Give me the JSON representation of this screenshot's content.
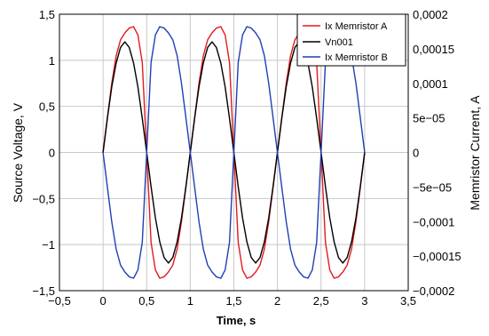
{
  "chart_data": {
    "type": "line",
    "xlabel": "Time, s",
    "ylabel_left": "Source Voltage, V",
    "ylabel_right": "Memristor Current, A",
    "xlim": [
      -0.5,
      3.5
    ],
    "ylim_left": [
      -1.5,
      1.5
    ],
    "ylim_right": [
      -0.0002,
      0.0002
    ],
    "grid": true,
    "legend_position": "top-right",
    "x_ticks": [
      "−0,5",
      "0",
      "0,5",
      "1",
      "1,5",
      "2",
      "2,5",
      "3",
      "3,5"
    ],
    "y_left_ticks": [
      "1,5",
      "1",
      "0,5",
      "0",
      "−0,5",
      "−1",
      "−1,5"
    ],
    "y_right_ticks": [
      "0,0002",
      "0,00015",
      "0,0001",
      "5e−05",
      "0",
      "−5e−05",
      "−0,0001",
      "−0,00015",
      "−0,0002"
    ],
    "series": [
      {
        "name": "Ix Memristor A",
        "color": "#e31a1c",
        "axis": "right",
        "points": [
          [
            0,
            0
          ],
          [
            0.05,
            5e-05
          ],
          [
            0.1,
            0.0001
          ],
          [
            0.15,
            0.00014
          ],
          [
            0.2,
            0.000163
          ],
          [
            0.25,
            0.000173
          ],
          [
            0.3,
            0.00018
          ],
          [
            0.35,
            0.000182
          ],
          [
            0.4,
            0.00017
          ],
          [
            0.45,
            0.00013
          ],
          [
            0.5,
            0
          ],
          [
            0.55,
            -0.00013
          ],
          [
            0.6,
            -0.00017
          ],
          [
            0.65,
            -0.000182
          ],
          [
            0.7,
            -0.00018
          ],
          [
            0.75,
            -0.000173
          ],
          [
            0.8,
            -0.000163
          ],
          [
            0.85,
            -0.00014
          ],
          [
            0.9,
            -0.0001
          ],
          [
            0.95,
            -5e-05
          ],
          [
            1.0,
            0
          ],
          [
            1.05,
            5e-05
          ],
          [
            1.1,
            0.0001
          ],
          [
            1.15,
            0.00014
          ],
          [
            1.2,
            0.000163
          ],
          [
            1.25,
            0.000173
          ],
          [
            1.3,
            0.00018
          ],
          [
            1.35,
            0.000182
          ],
          [
            1.4,
            0.00017
          ],
          [
            1.45,
            0.00013
          ],
          [
            1.5,
            0
          ],
          [
            1.55,
            -0.00013
          ],
          [
            1.6,
            -0.00017
          ],
          [
            1.65,
            -0.000182
          ],
          [
            1.7,
            -0.00018
          ],
          [
            1.75,
            -0.000173
          ],
          [
            1.8,
            -0.000163
          ],
          [
            1.85,
            -0.00014
          ],
          [
            1.9,
            -0.0001
          ],
          [
            1.95,
            -5e-05
          ],
          [
            2.0,
            0
          ],
          [
            2.05,
            5e-05
          ],
          [
            2.1,
            0.0001
          ],
          [
            2.15,
            0.00014
          ],
          [
            2.2,
            0.000163
          ],
          [
            2.25,
            0.000173
          ],
          [
            2.3,
            0.00018
          ],
          [
            2.35,
            0.000182
          ],
          [
            2.4,
            0.00017
          ],
          [
            2.45,
            0.00013
          ],
          [
            2.5,
            0
          ],
          [
            2.55,
            -0.00013
          ],
          [
            2.6,
            -0.00017
          ],
          [
            2.65,
            -0.000182
          ],
          [
            2.7,
            -0.00018
          ],
          [
            2.75,
            -0.000173
          ],
          [
            2.8,
            -0.000163
          ],
          [
            2.85,
            -0.00014
          ],
          [
            2.9,
            -0.0001
          ],
          [
            2.95,
            -5e-05
          ],
          [
            3.0,
            0
          ]
        ]
      },
      {
        "name": "Vn001",
        "color": "#000000",
        "axis": "left",
        "points": [
          [
            0,
            0
          ],
          [
            0.05,
            0.37
          ],
          [
            0.1,
            0.71
          ],
          [
            0.15,
            0.97
          ],
          [
            0.2,
            1.14
          ],
          [
            0.25,
            1.2
          ],
          [
            0.3,
            1.14
          ],
          [
            0.35,
            0.97
          ],
          [
            0.4,
            0.71
          ],
          [
            0.45,
            0.37
          ],
          [
            0.5,
            0
          ],
          [
            0.55,
            -0.37
          ],
          [
            0.6,
            -0.71
          ],
          [
            0.65,
            -0.97
          ],
          [
            0.7,
            -1.14
          ],
          [
            0.75,
            -1.2
          ],
          [
            0.8,
            -1.14
          ],
          [
            0.85,
            -0.97
          ],
          [
            0.9,
            -0.71
          ],
          [
            0.95,
            -0.37
          ],
          [
            1.0,
            0
          ],
          [
            1.05,
            0.37
          ],
          [
            1.1,
            0.71
          ],
          [
            1.15,
            0.97
          ],
          [
            1.2,
            1.14
          ],
          [
            1.25,
            1.2
          ],
          [
            1.3,
            1.14
          ],
          [
            1.35,
            0.97
          ],
          [
            1.4,
            0.71
          ],
          [
            1.45,
            0.37
          ],
          [
            1.5,
            0
          ],
          [
            1.55,
            -0.37
          ],
          [
            1.6,
            -0.71
          ],
          [
            1.65,
            -0.97
          ],
          [
            1.7,
            -1.14
          ],
          [
            1.75,
            -1.2
          ],
          [
            1.8,
            -1.14
          ],
          [
            1.85,
            -0.97
          ],
          [
            1.9,
            -0.71
          ],
          [
            1.95,
            -0.37
          ],
          [
            2.0,
            0
          ],
          [
            2.05,
            0.37
          ],
          [
            2.1,
            0.71
          ],
          [
            2.15,
            0.97
          ],
          [
            2.2,
            1.14
          ],
          [
            2.25,
            1.2
          ],
          [
            2.3,
            1.14
          ],
          [
            2.35,
            0.97
          ],
          [
            2.4,
            0.71
          ],
          [
            2.45,
            0.37
          ],
          [
            2.5,
            0
          ],
          [
            2.55,
            -0.37
          ],
          [
            2.6,
            -0.71
          ],
          [
            2.65,
            -0.97
          ],
          [
            2.7,
            -1.14
          ],
          [
            2.75,
            -1.2
          ],
          [
            2.8,
            -1.14
          ],
          [
            2.85,
            -0.97
          ],
          [
            2.9,
            -0.71
          ],
          [
            2.95,
            -0.37
          ],
          [
            3.0,
            0
          ]
        ]
      },
      {
        "name": "Ix Memristor B",
        "color": "#1f3fb4",
        "axis": "right",
        "points": [
          [
            0,
            0
          ],
          [
            0.05,
            -5e-05
          ],
          [
            0.1,
            -0.0001
          ],
          [
            0.15,
            -0.00014
          ],
          [
            0.2,
            -0.000163
          ],
          [
            0.25,
            -0.000173
          ],
          [
            0.3,
            -0.00018
          ],
          [
            0.35,
            -0.000182
          ],
          [
            0.4,
            -0.00017
          ],
          [
            0.45,
            -0.00013
          ],
          [
            0.5,
            0
          ],
          [
            0.55,
            0.00013
          ],
          [
            0.6,
            0.00017
          ],
          [
            0.65,
            0.000182
          ],
          [
            0.7,
            0.00018
          ],
          [
            0.75,
            0.000173
          ],
          [
            0.8,
            0.000163
          ],
          [
            0.85,
            0.00014
          ],
          [
            0.9,
            0.0001
          ],
          [
            0.95,
            5e-05
          ],
          [
            1.0,
            0
          ],
          [
            1.05,
            -5e-05
          ],
          [
            1.1,
            -0.0001
          ],
          [
            1.15,
            -0.00014
          ],
          [
            1.2,
            -0.000163
          ],
          [
            1.25,
            -0.000173
          ],
          [
            1.3,
            -0.00018
          ],
          [
            1.35,
            -0.000182
          ],
          [
            1.4,
            -0.00017
          ],
          [
            1.45,
            -0.00013
          ],
          [
            1.5,
            0
          ],
          [
            1.55,
            0.00013
          ],
          [
            1.6,
            0.00017
          ],
          [
            1.65,
            0.000182
          ],
          [
            1.7,
            0.00018
          ],
          [
            1.75,
            0.000173
          ],
          [
            1.8,
            0.000163
          ],
          [
            1.85,
            0.00014
          ],
          [
            1.9,
            0.0001
          ],
          [
            1.95,
            5e-05
          ],
          [
            2.0,
            0
          ],
          [
            2.05,
            -5e-05
          ],
          [
            2.1,
            -0.0001
          ],
          [
            2.15,
            -0.00014
          ],
          [
            2.2,
            -0.000163
          ],
          [
            2.25,
            -0.000173
          ],
          [
            2.3,
            -0.00018
          ],
          [
            2.35,
            -0.000182
          ],
          [
            2.4,
            -0.00017
          ],
          [
            2.45,
            -0.00013
          ],
          [
            2.5,
            0
          ],
          [
            2.55,
            0.00013
          ],
          [
            2.6,
            0.00017
          ],
          [
            2.65,
            0.000182
          ],
          [
            2.7,
            0.00018
          ],
          [
            2.75,
            0.000173
          ],
          [
            2.8,
            0.000163
          ],
          [
            2.85,
            0.00014
          ],
          [
            2.9,
            0.0001
          ],
          [
            2.95,
            5e-05
          ],
          [
            3.0,
            0
          ]
        ]
      }
    ]
  }
}
